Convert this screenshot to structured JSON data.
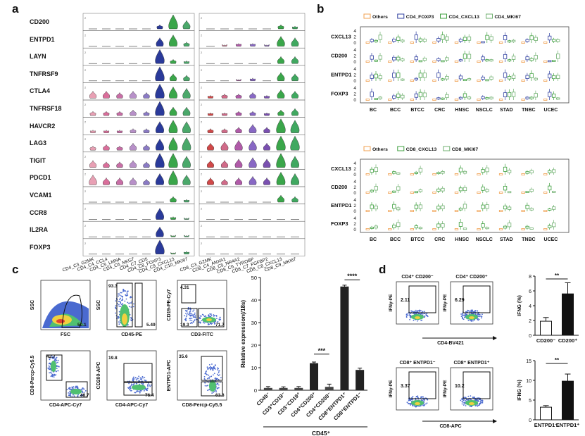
{
  "panels": {
    "a": "a",
    "b": "b",
    "c": "c",
    "d": "d"
  },
  "panel_a": {
    "genes": [
      "CD200",
      "ENTPD1",
      "LAYN",
      "TNFRSF9",
      "CTLA4",
      "TNFRSF18",
      "HAVCR2",
      "LAG3",
      "TIGIT",
      "PDCD1",
      "VCAM1",
      "CCR8",
      "IL2RA",
      "FOXP3"
    ],
    "cd4_clusters": [
      "CD4_C3_GZMK",
      "CD4_C4_CCL4",
      "CD4_C5_LMNA",
      "CD4_C6_NKG7",
      "CD4_C7_CD5",
      "CD4_C8_FOXP3",
      "CD4_C9_CXCL13",
      "CD4_C10_MKI67"
    ],
    "cd8_clusters": [
      "CD8_C3_GZMK",
      "CD8_C4_ANXA1",
      "CD8_C5_NR4A2",
      "CD8_C6_TYROBP",
      "CD8_C7_FGFBP2",
      "CD8_C8_CXCL13",
      "CD8_C9_MKI67"
    ],
    "cd4_colors": [
      "#e8a0b4",
      "#d96e9a",
      "#c86ea6",
      "#b790c8",
      "#8a7ac4",
      "#2a3a9a",
      "#3aa64a",
      "#4aa86a"
    ],
    "cd8_colors": [
      "#d04848",
      "#d06a88",
      "#b05aa8",
      "#8868c4",
      "#7a50b0",
      "#3aa64a",
      "#40a860"
    ]
  },
  "panel_b": {
    "top_legend": [
      "Others",
      "CD4_FOXP3",
      "CD4_CXCL13",
      "CD4_MKI67"
    ],
    "top_genes": [
      "CXCL13",
      "CD200",
      "ENTPD1",
      "FOXP3"
    ],
    "bottom_legend": [
      "Others",
      "CD8_CXCL13",
      "CD8_MKI67"
    ],
    "bottom_genes": [
      "CXCL13",
      "CD200",
      "ENTPD1",
      "FOXP3"
    ],
    "cancers": [
      "BC",
      "BCC",
      "BTCC",
      "CRC",
      "HNSC",
      "NSCLC",
      "STAD",
      "TNBC",
      "UCEC"
    ],
    "colors": {
      "others": "#f0a050",
      "foxp3": "#3040a0",
      "cxcl13": "#40a040",
      "mki67": "#70b070"
    },
    "yticks": [
      "4",
      "2",
      "0"
    ]
  },
  "panel_c": {
    "flow_plots": [
      {
        "xlabel": "FSC",
        "ylabel": "SSC",
        "gates": [
          "50.1"
        ]
      },
      {
        "xlabel": "CD45-PE",
        "ylabel": "SSC",
        "gates": [
          "93.3",
          "5.49"
        ]
      },
      {
        "xlabel": "CD3-FITC",
        "ylabel": "CD19-PE-Cy7",
        "gates": [
          "4.31",
          "19.3",
          "71.7"
        ]
      },
      {
        "xlabel": "CD4-APC-Cy7",
        "ylabel": "CD8-Percp-Cy5.5",
        "gates": [
          "42.7",
          "48.7"
        ]
      },
      {
        "xlabel": "CD4-APC-Cy7",
        "ylabel": "CD200-APC",
        "gates": [
          "19.8",
          "76.4"
        ]
      },
      {
        "xlabel": "CD8-Percp-Cy5.5",
        "ylabel": "ENTPD1-APC",
        "gates": [
          "35.6",
          "63.3"
        ]
      }
    ],
    "bar_chart": {
      "ylabel": "Relative expression(/18s)",
      "yticks": [
        "0",
        "10",
        "20",
        "30",
        "40",
        "50"
      ],
      "group_label": "CD45⁺",
      "significance": [
        "***",
        "****"
      ]
    }
  },
  "panel_d": {
    "cd4_plots": [
      {
        "title": "CD4⁺ CD200⁻",
        "value": "2.11"
      },
      {
        "title": "CD4⁺ CD200⁺",
        "value": "6.29"
      }
    ],
    "cd4_xlabel": "CD4-BV421",
    "cd8_plots": [
      {
        "title": "CD8⁺ ENTPD1⁻",
        "value": "3.37"
      },
      {
        "title": "CD8⁺ ENTPD1⁺",
        "value": "10.2"
      }
    ],
    "cd8_xlabel": "CD8-APC",
    "ylabel": "IFNγ-PE",
    "bar_top": {
      "ylabel": "IFNG (%)",
      "categories": [
        "CD200⁻",
        "CD200⁺"
      ],
      "sig": "**",
      "yticks": [
        "8",
        "6",
        "4",
        "2",
        "0"
      ]
    },
    "bar_bottom": {
      "ylabel": "IFNG (%)",
      "categories": [
        "ENTPD1⁻",
        "ENTPD1⁺"
      ],
      "sig": "**",
      "yticks": [
        "15",
        "10",
        "5",
        "0"
      ]
    }
  },
  "chart_data": [
    {
      "type": "bar",
      "title": "",
      "xlabel": "CD45⁺",
      "ylabel": "Relative expression(/18s)",
      "ylim": [
        0,
        50
      ],
      "categories": [
        "CD45⁻",
        "CD3⁺CD19⁻",
        "CD3⁻CD19⁺",
        "CD4⁺CD200⁺",
        "CD4⁺CD200⁻",
        "CD8⁺ENTPD1⁺",
        "CD8⁺ENTPD1⁻"
      ],
      "values": [
        1,
        1,
        1,
        12,
        1.5,
        46,
        9
      ],
      "errors": [
        0.6,
        0.5,
        0.6,
        0.5,
        1.2,
        0.6,
        0.8
      ]
    },
    {
      "type": "bar",
      "title": "",
      "xlabel": "",
      "ylabel": "IFNG (%)",
      "ylim": [
        0,
        8
      ],
      "categories": [
        "CD200⁻",
        "CD200⁺"
      ],
      "values": [
        1.9,
        5.6
      ],
      "errors": [
        0.5,
        1.5
      ]
    },
    {
      "type": "bar",
      "title": "",
      "xlabel": "",
      "ylabel": "IFNG (%)",
      "ylim": [
        0,
        15
      ],
      "categories": [
        "ENTPD1⁻",
        "ENTPD1⁺"
      ],
      "values": [
        3.2,
        9.8
      ],
      "errors": [
        0.4,
        1.8
      ]
    }
  ]
}
